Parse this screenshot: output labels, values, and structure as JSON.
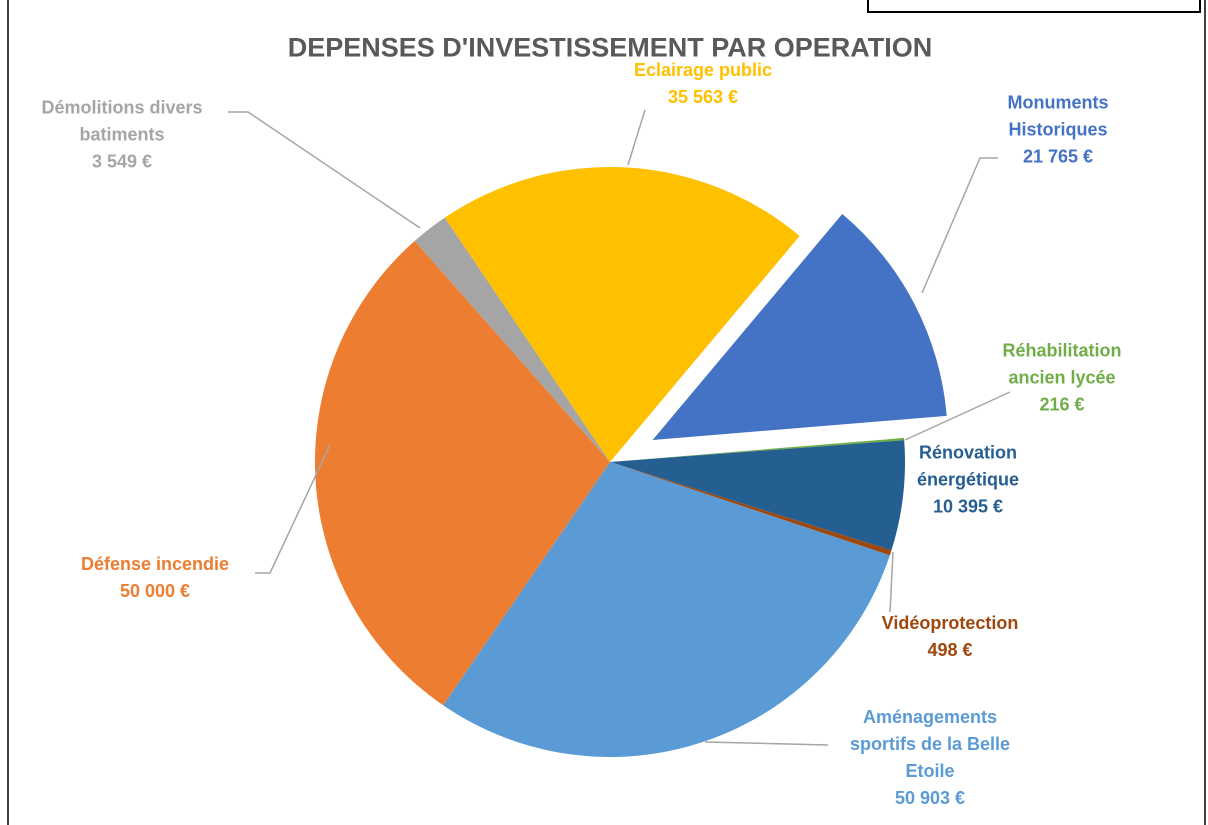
{
  "chart_data": {
    "type": "pie",
    "title": "DEPENSES D'INVESTISSEMENT PAR OPERATION",
    "categories": [
      "Monuments Historiques",
      "Réhabilitation ancien lycée",
      "Rénovation énergétique",
      "Vidéoprotection",
      "Aménagements sportifs de la Belle Etoile",
      "Défense incendie",
      "Démolitions divers batiments",
      "Eclairage public"
    ],
    "values": [
      21765,
      216,
      10395,
      498,
      50903,
      50000,
      3549,
      35563
    ],
    "value_labels": [
      "21 765 €",
      "216 €",
      "10 395 €",
      "498 €",
      "50 903 €",
      "50 000 €",
      "3 549 €",
      "35 563 €"
    ],
    "colors": [
      "#4472c4",
      "#70ad47",
      "#255e91",
      "#9e480e",
      "#5b9bd5",
      "#ed7d31",
      "#a5a5a5",
      "#ffc000"
    ],
    "start_angle": 40,
    "exploded_index": 0
  }
}
